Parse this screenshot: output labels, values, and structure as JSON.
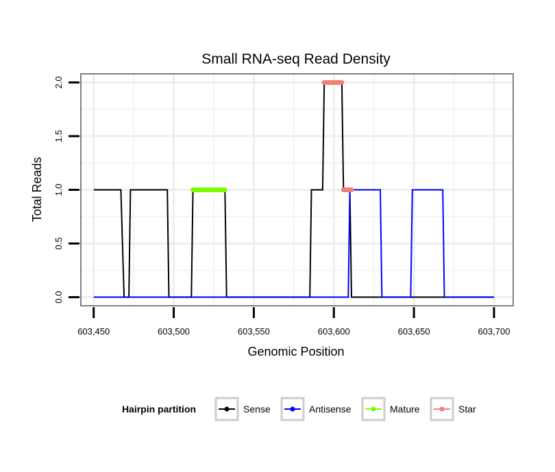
{
  "chart_data": {
    "type": "line",
    "title": "Small RNA-seq Read Density",
    "xlabel": "Genomic Position",
    "ylabel": "Total Reads",
    "xlim": [
      603442,
      603712
    ],
    "ylim": [
      -0.08,
      2.08
    ],
    "x_ticks": [
      603450,
      603500,
      603550,
      603600,
      603650,
      603700
    ],
    "x_tick_labels": [
      "603,450",
      "603,500",
      "603,550",
      "603,600",
      "603,650",
      "603,700"
    ],
    "y_ticks": [
      0,
      0.5,
      1,
      1.5,
      2
    ],
    "y_tick_labels": [
      "0.0",
      "0.5",
      "1.0",
      "1.5",
      "2.0"
    ],
    "grid": true,
    "legend_position": "bottom",
    "legend_title": "Hairpin partition",
    "series": [
      {
        "name": "Sense",
        "color": "#000000",
        "width": 2,
        "x": [
          603450,
          603467,
          603469,
          603472,
          603473,
          603496,
          603497,
          603511,
          603512,
          603532,
          603533,
          603585,
          603586,
          603593,
          603594,
          603605,
          603606,
          603610,
          603611,
          603700
        ],
        "y": [
          1,
          1,
          0,
          0,
          1,
          1,
          0,
          0,
          1,
          1,
          0,
          0,
          1,
          1,
          2,
          2,
          1,
          1,
          0,
          0
        ]
      },
      {
        "name": "Antisense",
        "color": "#0000ff",
        "width": 2,
        "x": [
          603450,
          603609,
          603610,
          603629,
          603630,
          603648,
          603649,
          603668,
          603669,
          603700
        ],
        "y": [
          0,
          0,
          1,
          1,
          0,
          0,
          1,
          1,
          0,
          0
        ]
      },
      {
        "name": "Mature",
        "color": "#7cfc00",
        "width": 7,
        "x": [
          603512,
          603532
        ],
        "y": [
          1,
          1
        ]
      },
      {
        "name": "Star",
        "color": "#f08077",
        "width": 7,
        "x": [
          603594,
          603605
        ],
        "y": [
          2,
          2
        ]
      },
      {
        "name": "Star",
        "color": "#f08077",
        "width": 7,
        "x": [
          603606,
          603611
        ],
        "y": [
          1,
          1
        ]
      }
    ],
    "legend": [
      {
        "label": "Sense",
        "color": "#000000"
      },
      {
        "label": "Antisense",
        "color": "#0000ff"
      },
      {
        "label": "Mature",
        "color": "#7cfc00"
      },
      {
        "label": "Star",
        "color": "#f08077"
      }
    ]
  }
}
